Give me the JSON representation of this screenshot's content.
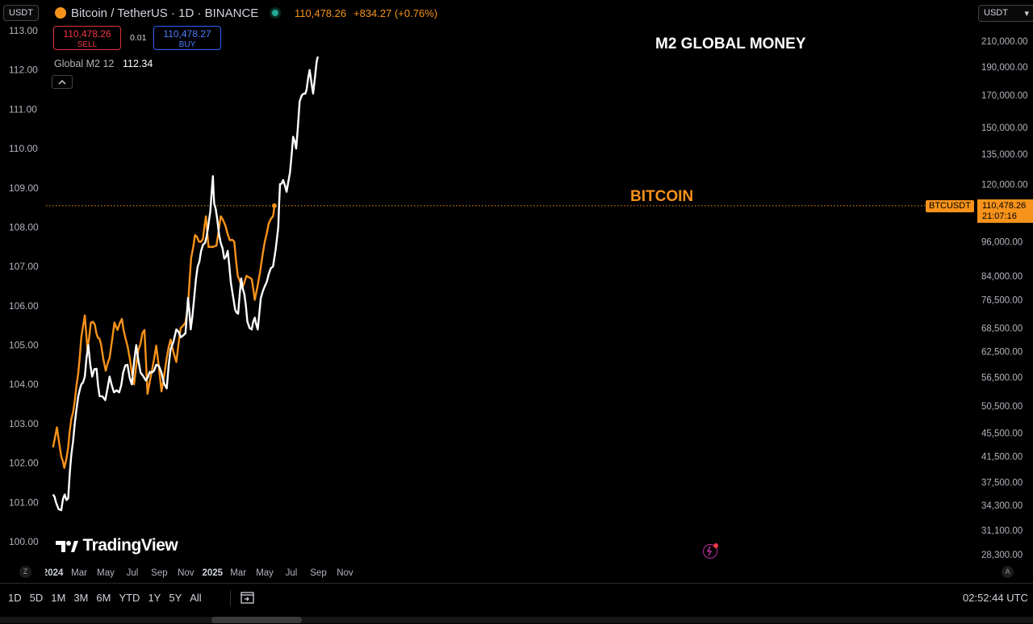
{
  "header": {
    "currency": "USDT",
    "symbol_title": "Bitcoin / TetherUS · 1D · BINANCE",
    "last_price": "110,478.26",
    "change": "+834.27 (+0.76%)",
    "sell_price": "110,478.26",
    "sell_label": "SELL",
    "spread": "0.01",
    "buy_price": "110,478.27",
    "buy_label": "BUY",
    "indicator_name": "Global M2 12",
    "indicator_value": "112.34",
    "right_currency": "USDT"
  },
  "annotations": {
    "m2_label": "M2 GLOBAL MONEY",
    "btc_label": "BITCOIN",
    "price_tag_symbol": "BTCUSDT",
    "price_tag_value": "110,478.26",
    "price_tag_countdown": "21:07:16"
  },
  "watermark": "TradingView",
  "timeframes": [
    "1D",
    "5D",
    "1M",
    "3M",
    "6M",
    "YTD",
    "1Y",
    "5Y",
    "All"
  ],
  "clock": "02:52:44 UTC",
  "axis_badges": {
    "left": "Z",
    "right": "A"
  },
  "colors": {
    "btc": "#f7931a",
    "m2": "#ffffff",
    "price_line": "#f7931a",
    "background": "#000000"
  },
  "chart_data": {
    "type": "line",
    "x_tick_labels": [
      "2024",
      "Mar",
      "May",
      "Jul",
      "Sep",
      "Nov",
      "2025",
      "Mar",
      "May",
      "Jul",
      "Sep",
      "Nov"
    ],
    "left_axis": {
      "ticks": [
        "113.00",
        "112.00",
        "111.00",
        "110.00",
        "109.00",
        "108.00",
        "107.00",
        "106.00",
        "105.00",
        "104.00",
        "103.00",
        "102.00",
        "101.00",
        "100.00"
      ],
      "range": [
        100,
        113
      ]
    },
    "right_axis": {
      "scale": "log",
      "ticks": [
        "210,000.00",
        "190,000.00",
        "170,000.00",
        "150,000.00",
        "135,000.00",
        "120,000.00",
        "96,000.00",
        "84,000.00",
        "76,500.00",
        "68,500.00",
        "62,500.00",
        "56,500.00",
        "50,500.00",
        "45,500.00",
        "41,500.00",
        "37,500.00",
        "34,300.00",
        "31,100.00",
        "28,300.00"
      ]
    },
    "series": [
      {
        "name": "BITCOIN",
        "axis": "right",
        "color": "#f7931a",
        "points": [
          [
            "2024-01-01",
            43000
          ],
          [
            "2024-01-10",
            46500
          ],
          [
            "2024-01-20",
            41500
          ],
          [
            "2024-01-27",
            39700
          ],
          [
            "2024-02-05",
            43000
          ],
          [
            "2024-02-12",
            48000
          ],
          [
            "2024-02-20",
            51500
          ],
          [
            "2024-02-28",
            57500
          ],
          [
            "2024-03-06",
            66000
          ],
          [
            "2024-03-14",
            72000
          ],
          [
            "2024-03-20",
            63000
          ],
          [
            "2024-03-28",
            70000
          ],
          [
            "2024-04-06",
            69500
          ],
          [
            "2024-04-13",
            66000
          ],
          [
            "2024-04-20",
            64500
          ],
          [
            "2024-05-01",
            58000
          ],
          [
            "2024-05-10",
            61000
          ],
          [
            "2024-05-21",
            70000
          ],
          [
            "2024-05-28",
            68000
          ],
          [
            "2024-06-07",
            71000
          ],
          [
            "2024-06-15",
            66000
          ],
          [
            "2024-06-25",
            61000
          ],
          [
            "2024-07-05",
            55000
          ],
          [
            "2024-07-15",
            63000
          ],
          [
            "2024-07-29",
            68000
          ],
          [
            "2024-08-05",
            53000
          ],
          [
            "2024-08-15",
            58000
          ],
          [
            "2024-08-25",
            64000
          ],
          [
            "2024-09-06",
            53500
          ],
          [
            "2024-09-18",
            61000
          ],
          [
            "2024-09-27",
            65500
          ],
          [
            "2024-10-10",
            60000
          ],
          [
            "2024-10-20",
            68500
          ],
          [
            "2024-10-31",
            70000
          ],
          [
            "2024-11-06",
            75000
          ],
          [
            "2024-11-13",
            90000
          ],
          [
            "2024-11-22",
            98500
          ],
          [
            "2024-12-01",
            96000
          ],
          [
            "2024-12-10",
            97000
          ],
          [
            "2024-12-17",
            106000
          ],
          [
            "2024-12-23",
            94000
          ],
          [
            "2025-01-01",
            94000
          ],
          [
            "2025-01-10",
            94500
          ],
          [
            "2025-01-20",
            106000
          ],
          [
            "2025-01-31",
            102000
          ],
          [
            "2025-02-10",
            96500
          ],
          [
            "2025-02-20",
            96000
          ],
          [
            "2025-02-28",
            84000
          ],
          [
            "2025-03-10",
            80000
          ],
          [
            "2025-03-20",
            84000
          ],
          [
            "2025-04-01",
            83000
          ],
          [
            "2025-04-08",
            76500
          ],
          [
            "2025-04-20",
            85000
          ],
          [
            "2025-05-01",
            96000
          ],
          [
            "2025-05-10",
            103000
          ],
          [
            "2025-05-20",
            106000
          ],
          [
            "2025-05-23",
            110478.26
          ]
        ]
      },
      {
        "name": "M2 GLOBAL MONEY",
        "axis": "left",
        "color": "#ffffff",
        "points": [
          [
            "2024-01-01",
            101.2
          ],
          [
            "2024-01-08",
            101.0
          ],
          [
            "2024-01-20",
            100.8
          ],
          [
            "2024-01-28",
            101.2
          ],
          [
            "2024-02-05",
            101.1
          ],
          [
            "2024-02-12",
            102.2
          ],
          [
            "2024-02-20",
            103.0
          ],
          [
            "2024-02-28",
            103.7
          ],
          [
            "2024-03-06",
            104.0
          ],
          [
            "2024-03-14",
            104.2
          ],
          [
            "2024-03-22",
            105.0
          ],
          [
            "2024-03-31",
            104.2
          ],
          [
            "2024-04-10",
            104.4
          ],
          [
            "2024-04-17",
            103.7
          ],
          [
            "2024-04-30",
            103.6
          ],
          [
            "2024-05-10",
            104.2
          ],
          [
            "2024-05-20",
            103.8
          ],
          [
            "2024-06-01",
            103.8
          ],
          [
            "2024-06-10",
            104.3
          ],
          [
            "2024-06-20",
            104.5
          ],
          [
            "2024-06-30",
            104.0
          ],
          [
            "2024-07-10",
            105.0
          ],
          [
            "2024-07-20",
            104.3
          ],
          [
            "2024-08-01",
            104.1
          ],
          [
            "2024-08-15",
            104.3
          ],
          [
            "2024-08-25",
            104.5
          ],
          [
            "2024-09-06",
            104.3
          ],
          [
            "2024-09-18",
            103.9
          ],
          [
            "2024-09-27",
            104.9
          ],
          [
            "2024-10-10",
            105.4
          ],
          [
            "2024-10-20",
            105.2
          ],
          [
            "2024-10-31",
            105.3
          ],
          [
            "2024-11-06",
            106.2
          ],
          [
            "2024-11-12",
            105.4
          ],
          [
            "2024-11-20",
            106.2
          ],
          [
            "2024-11-28",
            107.0
          ],
          [
            "2024-12-06",
            107.4
          ],
          [
            "2024-12-15",
            107.6
          ],
          [
            "2024-12-22",
            108.0
          ],
          [
            "2024-12-27",
            108.4
          ],
          [
            "2025-01-02",
            109.3
          ],
          [
            "2025-01-05",
            108.6
          ],
          [
            "2025-01-12",
            108.2
          ],
          [
            "2025-01-20",
            107.6
          ],
          [
            "2025-01-28",
            107.2
          ],
          [
            "2025-02-05",
            107.4
          ],
          [
            "2025-02-12",
            106.6
          ],
          [
            "2025-02-22",
            105.9
          ],
          [
            "2025-03-01",
            105.8
          ],
          [
            "2025-03-08",
            106.7
          ],
          [
            "2025-03-15",
            106.3
          ],
          [
            "2025-03-22",
            105.6
          ],
          [
            "2025-04-01",
            105.4
          ],
          [
            "2025-04-08",
            105.7
          ],
          [
            "2025-04-15",
            105.4
          ],
          [
            "2025-04-22",
            106.2
          ],
          [
            "2025-05-01",
            106.5
          ],
          [
            "2025-05-10",
            106.8
          ],
          [
            "2025-05-20",
            107.0
          ],
          [
            "2025-06-01",
            108.0
          ],
          [
            "2025-06-05",
            109.1
          ],
          [
            "2025-06-12",
            109.2
          ],
          [
            "2025-06-20",
            108.9
          ],
          [
            "2025-06-28",
            109.4
          ],
          [
            "2025-07-05",
            110.3
          ],
          [
            "2025-07-12",
            110.0
          ],
          [
            "2025-07-20",
            111.2
          ],
          [
            "2025-07-30",
            111.4
          ],
          [
            "2025-08-05",
            111.5
          ],
          [
            "2025-08-12",
            112.0
          ],
          [
            "2025-08-20",
            111.4
          ],
          [
            "2025-08-28",
            112.2
          ],
          [
            "2025-08-31",
            112.34
          ]
        ]
      }
    ]
  }
}
